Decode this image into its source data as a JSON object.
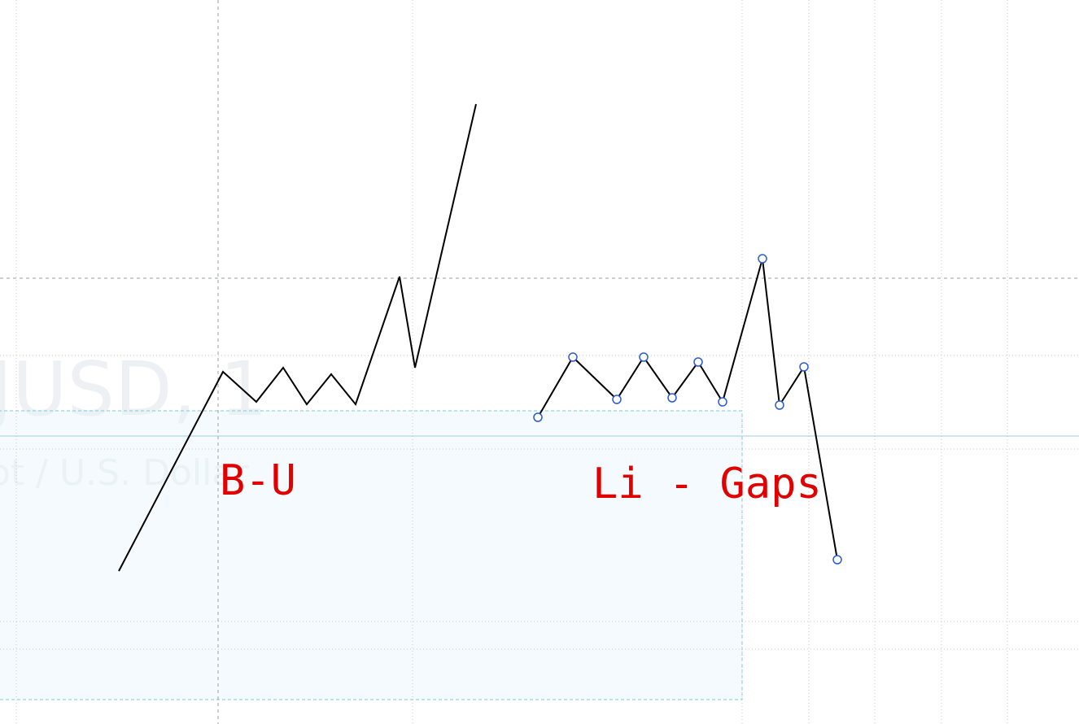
{
  "watermark": {
    "symbol": "JUSD, 1",
    "description": "ot / U.S. Dollar"
  },
  "annotations": [
    "B-U",
    "Li - Gaps"
  ]
}
